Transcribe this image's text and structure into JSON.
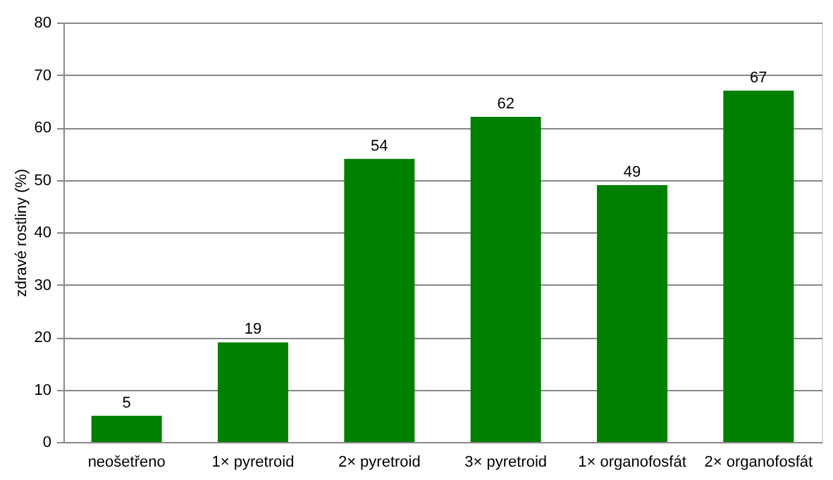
{
  "chart_data": {
    "type": "bar",
    "ylabel": "zdravé rostliny (%)",
    "categories": [
      "neošetřeno",
      "1× pyretroid",
      "2× pyretroid",
      "3× pyretroid",
      "1× organofosfát",
      "2× organofosfát"
    ],
    "values": [
      5,
      19,
      54,
      62,
      49,
      67
    ],
    "color": "#008000",
    "ylim": [
      0,
      80
    ],
    "yticks": [
      0,
      10,
      20,
      30,
      40,
      50,
      60,
      70,
      80
    ],
    "grid": "y",
    "data_labels": true
  }
}
